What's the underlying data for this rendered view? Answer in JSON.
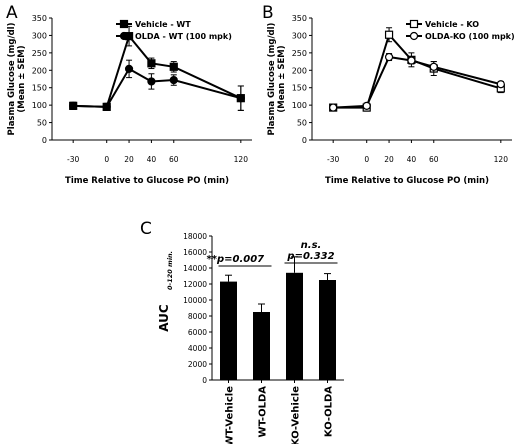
{
  "chart_data": [
    {
      "panel": "A",
      "type": "line",
      "xlabel": "Time Relative to Glucose PO (min)",
      "ylabel": "Plasma Glucose (mg/dl)",
      "ylabel2": "(Mean ± SEM)",
      "x": [
        -30,
        0,
        20,
        40,
        60,
        120
      ],
      "xticks": [
        "-30",
        "0",
        "20",
        "40",
        "60",
        "120"
      ],
      "xlim": [
        -40,
        130
      ],
      "ylim": [
        0,
        350
      ],
      "yticks": [
        "0",
        "50",
        "100",
        "150",
        "200",
        "250",
        "300",
        "350"
      ],
      "legend_position": "top-right",
      "series": [
        {
          "name": "Vehicle - WT",
          "marker": "filled-square",
          "values": [
            98,
            95,
            298,
            220,
            210,
            120
          ],
          "errors": [
            10,
            10,
            28,
            15,
            15,
            35
          ]
        },
        {
          "name": "OLDA - WT (100 mpk)",
          "marker": "filled-circle",
          "values": [
            98,
            95,
            204,
            168,
            172,
            120
          ],
          "errors": [
            10,
            10,
            25,
            22,
            15,
            35
          ]
        }
      ]
    },
    {
      "panel": "B",
      "type": "line",
      "xlabel": "Time Relative to Glucose PO (min)",
      "ylabel": "Plasma Glucose (mg/dl)",
      "ylabel2": "(Mean ± SEM)",
      "x": [
        -30,
        0,
        20,
        40,
        60,
        120
      ],
      "xticks": [
        "-30",
        "0",
        "20",
        "40",
        "60",
        "120"
      ],
      "xlim": [
        -40,
        130
      ],
      "ylim": [
        0,
        350
      ],
      "yticks": [
        "0",
        "50",
        "100",
        "150",
        "200",
        "250",
        "300",
        "350"
      ],
      "legend_position": "top-right",
      "series": [
        {
          "name": "Vehicle - KO",
          "marker": "open-square",
          "values": [
            93,
            93,
            302,
            230,
            205,
            148
          ],
          "errors": [
            8,
            10,
            20,
            20,
            20,
            12
          ]
        },
        {
          "name": "OLDA-KO (100 mpk)",
          "marker": "open-circle",
          "values": [
            93,
            98,
            238,
            228,
            210,
            160
          ],
          "errors": [
            8,
            8,
            10,
            10,
            15,
            8
          ]
        }
      ]
    },
    {
      "panel": "C",
      "type": "bar",
      "ylabel": "AUC",
      "ylabel_sub": "0-120 min.",
      "categories": [
        "WT-Vehicle",
        "WT-OLDA",
        "KO-Vehicle",
        "KO-OLDA"
      ],
      "values": [
        12300,
        8500,
        13400,
        12500
      ],
      "errors": [
        800,
        1000,
        2000,
        800
      ],
      "ylim": [
        0,
        18000
      ],
      "yticks": [
        "0",
        "2000",
        "4000",
        "6000",
        "8000",
        "10000",
        "12000",
        "14000",
        "16000",
        "18000"
      ],
      "annotations": [
        {
          "text": "**p=0.007",
          "between": [
            "WT-Vehicle",
            "WT-OLDA"
          ]
        },
        {
          "text": "n.s.",
          "between": [
            "KO-Vehicle",
            "KO-OLDA"
          ]
        },
        {
          "text": "p=0.332",
          "between": [
            "KO-Vehicle",
            "KO-OLDA"
          ]
        }
      ]
    }
  ],
  "panel_labels": [
    "A",
    "B",
    "C"
  ]
}
